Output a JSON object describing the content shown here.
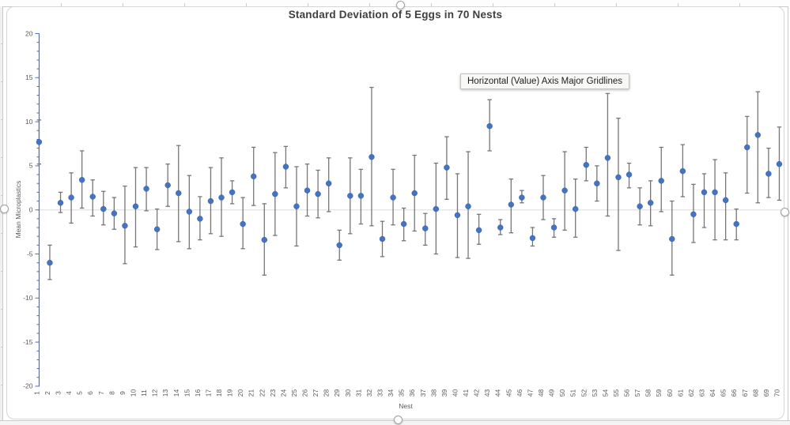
{
  "tooltip": {
    "text": "Horizontal (Value) Axis Major Gridlines"
  },
  "colors": {
    "marker": "#4472C4",
    "error_bar": "#767676",
    "value_axis": "#4472C4",
    "gridline": "#dcdcdc",
    "tick_label": "#595959",
    "title_text": "#3f3f3f"
  },
  "selection": {
    "handles": [
      "top-center",
      "bottom-center",
      "right-middle",
      "left-middle"
    ]
  },
  "chart_data": {
    "type": "scatter",
    "title": "Standard Deviation of 5 Eggs in 70 Nests",
    "xlabel": "Nest",
    "ylabel": "Mean Microplastics",
    "ylim": [
      -20,
      20
    ],
    "y_major_ticks": [
      20,
      15,
      10,
      5,
      0,
      -5,
      -10,
      -15,
      -20
    ],
    "y_minor_unit": 1,
    "visible_gridlines": [
      0
    ],
    "legend": "none",
    "x_tick_rotation": -90,
    "categories": [
      "1",
      "2",
      "3",
      "4",
      "5",
      "6",
      "7",
      "8",
      "9",
      "10",
      "11",
      "12",
      "13",
      "14",
      "15",
      "16",
      "17",
      "18",
      "19",
      "20",
      "21",
      "22",
      "23",
      "24",
      "25",
      "26",
      "27",
      "28",
      "29",
      "30",
      "31",
      "32",
      "33",
      "34",
      "35",
      "36",
      "37",
      "38",
      "39",
      "40",
      "41",
      "42",
      "43",
      "44",
      "45",
      "46",
      "47",
      "48",
      "49",
      "50",
      "51",
      "52",
      "53",
      "54",
      "55",
      "56",
      "57",
      "58",
      "59",
      "60",
      "61",
      "62",
      "63",
      "64",
      "65",
      "66",
      "67",
      "68",
      "69",
      "70"
    ],
    "series": [
      {
        "name": "Mean Microplastics",
        "marker": "circle",
        "values": [
          7.7,
          -6.0,
          0.8,
          1.4,
          3.4,
          1.5,
          0.1,
          -0.4,
          -1.8,
          0.4,
          2.4,
          -2.2,
          2.8,
          1.9,
          -0.2,
          -1.0,
          1.0,
          1.4,
          2.0,
          -1.6,
          3.8,
          -3.4,
          1.8,
          4.9,
          0.4,
          2.2,
          1.8,
          3.0,
          -4.0,
          1.6,
          1.6,
          6.0,
          -3.3,
          1.4,
          -1.6,
          1.9,
          -2.1,
          0.1,
          4.8,
          -0.6,
          0.4,
          -2.3,
          9.5,
          -2.0,
          0.6,
          1.4,
          -3.2,
          1.4,
          -2.0,
          2.2,
          0.1,
          5.1,
          3.0,
          5.9,
          3.7,
          4.0,
          0.4,
          0.8,
          3.3,
          -3.3,
          4.4,
          -0.5,
          2.0,
          2.0,
          1.1,
          -1.6,
          7.1,
          8.5,
          4.1,
          5.2
        ],
        "error_high": [
          10.2,
          -4.0,
          2.0,
          4.2,
          6.7,
          3.4,
          2.1,
          1.4,
          2.7,
          4.8,
          4.8,
          0.1,
          5.2,
          7.3,
          3.9,
          1.5,
          4.8,
          5.9,
          3.3,
          1.4,
          7.1,
          0.7,
          6.5,
          7.2,
          4.9,
          5.2,
          4.5,
          5.9,
          -2.3,
          5.9,
          4.6,
          13.9,
          -1.3,
          4.6,
          0.2,
          6.2,
          -0.4,
          5.3,
          8.3,
          4.1,
          6.6,
          -0.5,
          12.5,
          -1.1,
          3.5,
          2.2,
          -2.0,
          3.9,
          -1.0,
          6.6,
          3.5,
          7.1,
          5.0,
          13.2,
          10.4,
          5.3,
          2.5,
          3.3,
          7.1,
          1.0,
          7.4,
          2.9,
          4.1,
          5.7,
          4.2,
          0.1,
          10.6,
          13.4,
          7.0,
          9.4
        ],
        "error_low": [
          5.2,
          -7.9,
          -0.3,
          -1.5,
          0.2,
          -0.7,
          -1.7,
          -2.2,
          -6.1,
          -4.2,
          -0.1,
          -4.5,
          0.4,
          -3.6,
          -4.4,
          -3.4,
          -2.7,
          -3.0,
          0.7,
          -4.4,
          0.5,
          -7.4,
          -2.9,
          2.5,
          -4.1,
          -0.7,
          -0.9,
          -0.2,
          -5.7,
          -2.7,
          -1.6,
          -1.8,
          -5.3,
          -1.7,
          -3.5,
          -2.4,
          -4.0,
          -5.0,
          1.2,
          -5.4,
          -5.5,
          -3.9,
          6.7,
          -2.8,
          -2.6,
          0.8,
          -4.1,
          -1.1,
          -3.1,
          -2.3,
          -3.1,
          3.3,
          1.0,
          -0.7,
          -4.6,
          2.5,
          -1.7,
          -1.8,
          -0.2,
          -7.4,
          1.5,
          -3.7,
          -2.0,
          -3.4,
          -3.4,
          -3.4,
          1.9,
          0.8,
          1.4,
          1.1
        ]
      }
    ]
  }
}
